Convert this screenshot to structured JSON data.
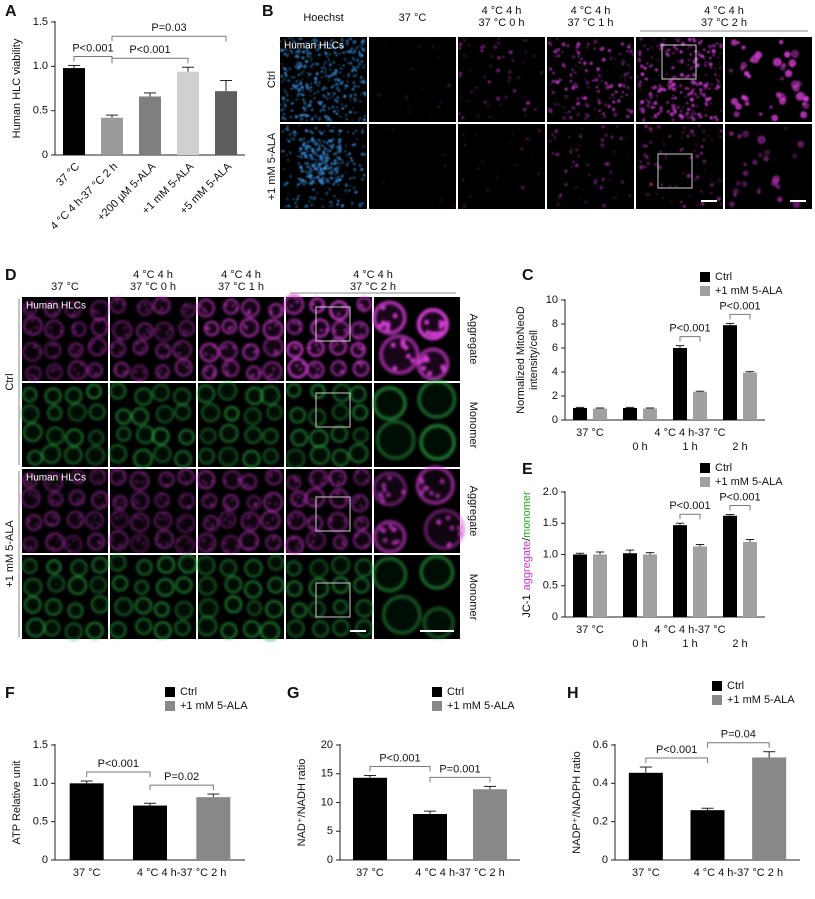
{
  "chart_data": [
    {
      "panel": "A",
      "type": "bar",
      "ylabel": "Human HLC viability",
      "categories": [
        "37 °C",
        "4 °C 4 h-37 °C 2 h",
        "+200 µM 5-ALA",
        "+1 mM 5-ALA",
        "+5 mM 5-ALA"
      ],
      "values": [
        0.98,
        0.42,
        0.66,
        0.94,
        0.72
      ],
      "errors": [
        0.03,
        0.03,
        0.04,
        0.05,
        0.12
      ],
      "colors": [
        "#000000",
        "#9a9a9a",
        "#7f7f7f",
        "#d0d0d0",
        "#5e5e5e"
      ],
      "ylim": [
        0,
        1.5
      ],
      "yticks": [
        0,
        0.5,
        {
          "value": 1,
          "label": "1.0"
        },
        1.5
      ],
      "annotations": [
        {
          "text": "P<0.001",
          "between": [
            0,
            1
          ]
        },
        {
          "text": "P<0.001",
          "between": [
            1,
            3
          ]
        },
        {
          "text": "P=0.03",
          "between": [
            1,
            4
          ]
        }
      ]
    },
    {
      "panel": "C",
      "type": "bar",
      "ylabel": [
        "Normalized MitoNeoD",
        "intensity/cell"
      ],
      "categories": [
        "37 °C",
        "0 h",
        "1 h",
        "2 h"
      ],
      "x_group_label": "4 °C 4 h-37 °C",
      "series": [
        {
          "name": "Ctrl",
          "color": "#000000",
          "values": [
            1.0,
            1.0,
            6.0,
            7.9
          ],
          "errors": [
            0.05,
            0.05,
            0.2,
            0.15
          ]
        },
        {
          "name": "+1 mM 5-ALA",
          "color": "#a0a0a0",
          "values": [
            0.95,
            0.95,
            2.35,
            3.95
          ],
          "errors": [
            0.05,
            0.05,
            0.05,
            0.08
          ]
        }
      ],
      "ylim": [
        0,
        10
      ],
      "yticks": [
        0,
        2,
        4,
        6,
        8,
        10
      ],
      "annotations": [
        {
          "text": "P<0.001",
          "between": [
            [
              0,
              2
            ],
            [
              1,
              2
            ]
          ]
        },
        {
          "text": "P<0.001",
          "between": [
            [
              0,
              3
            ],
            [
              1,
              3
            ]
          ]
        }
      ]
    },
    {
      "panel": "E",
      "type": "bar",
      "ylabel": [
        {
          "text": "JC-1",
          "color": "#000000"
        },
        {
          "text": "aggregate",
          "color": "#cc33cc"
        },
        {
          "text": "/",
          "color": "#000000"
        },
        {
          "text": "monomer",
          "color": "#22aa22"
        }
      ],
      "categories": [
        "37 °C",
        "0 h",
        "1 h",
        "2 h"
      ],
      "x_group_label": "4 °C 4 h-37 °C",
      "series": [
        {
          "name": "Ctrl",
          "color": "#000000",
          "values": [
            1.0,
            1.02,
            1.47,
            1.62
          ],
          "errors": [
            0.02,
            0.05,
            0.03,
            0.02
          ]
        },
        {
          "name": "+1 mM 5-ALA",
          "color": "#a0a0a0",
          "values": [
            1.0,
            1.0,
            1.13,
            1.2
          ],
          "errors": [
            0.04,
            0.03,
            0.03,
            0.04
          ]
        }
      ],
      "ylim": [
        0,
        2
      ],
      "yticks": [
        0,
        0.5,
        {
          "value": 1,
          "label": "1.0"
        },
        1.5,
        {
          "value": 2,
          "label": "2.0"
        }
      ],
      "annotations": [
        {
          "text": "P<0.001",
          "between": [
            [
              0,
              2
            ],
            [
              1,
              2
            ]
          ]
        },
        {
          "text": "P<0.001",
          "between": [
            [
              0,
              3
            ],
            [
              1,
              3
            ]
          ]
        }
      ]
    },
    {
      "panel": "F",
      "type": "bar",
      "ylabel": "ATP Relative unit",
      "categories": [
        "37 °C",
        "4 °C 4 h-37 °C 2 h"
      ],
      "series": [
        {
          "name": "Ctrl",
          "color": "#000000",
          "values": [
            1.0,
            0.71
          ],
          "errors": [
            0.03,
            0.03
          ]
        },
        {
          "name": "+1 mM 5-ALA",
          "color": "#888888",
          "values": [
            null,
            0.82
          ],
          "errors": [
            null,
            0.04
          ]
        }
      ],
      "ylim": [
        0,
        1.5
      ],
      "yticks": [
        0,
        0.5,
        {
          "value": 1,
          "label": "1.0"
        },
        1.5
      ],
      "annotations": [
        {
          "text": "P<0.001",
          "between": [
            [
              0,
              0
            ],
            [
              0,
              1
            ]
          ]
        },
        {
          "text": "P=0.02",
          "between": [
            [
              0,
              1
            ],
            [
              1,
              1
            ]
          ]
        }
      ]
    },
    {
      "panel": "G",
      "type": "bar",
      "ylabel": "NAD⁺/NADH ratio",
      "categories": [
        "37 °C",
        "4 °C 4 h-37 °C 2 h"
      ],
      "series": [
        {
          "name": "Ctrl",
          "color": "#000000",
          "values": [
            14.3,
            8.0
          ],
          "errors": [
            0.4,
            0.5
          ]
        },
        {
          "name": "+1 mM 5-ALA",
          "color": "#888888",
          "values": [
            null,
            12.3
          ],
          "errors": [
            null,
            0.5
          ]
        }
      ],
      "ylim": [
        0,
        20
      ],
      "yticks": [
        0,
        5,
        10,
        15,
        20
      ],
      "annotations": [
        {
          "text": "P<0.001",
          "between": [
            [
              0,
              0
            ],
            [
              0,
              1
            ]
          ]
        },
        {
          "text": "P=0.001",
          "between": [
            [
              0,
              1
            ],
            [
              1,
              1
            ]
          ]
        }
      ]
    },
    {
      "panel": "H",
      "type": "bar",
      "ylabel": "NADP⁺/NADPH ratio",
      "categories": [
        "37 °C",
        "4 °C 4 h-37 °C 2 h"
      ],
      "series": [
        {
          "name": "Ctrl",
          "color": "#000000",
          "values": [
            0.455,
            0.26
          ],
          "errors": [
            0.03,
            0.01
          ]
        },
        {
          "name": "+1 mM 5-ALA",
          "color": "#888888",
          "values": [
            null,
            0.535
          ],
          "errors": [
            null,
            0.03
          ]
        }
      ],
      "ylim": [
        0,
        0.6
      ],
      "yticks": [
        0,
        0.2,
        0.4,
        0.6
      ],
      "annotations": [
        {
          "text": "P<0.001",
          "between": [
            [
              0,
              0
            ],
            [
              0,
              1
            ]
          ]
        },
        {
          "text": "P=0.04",
          "between": [
            [
              0,
              1
            ],
            [
              1,
              1
            ]
          ]
        }
      ]
    }
  ],
  "panels": [
    {
      "panel": "B",
      "columns": [
        [
          "Hoechst"
        ],
        [
          "37 °C"
        ],
        [
          "4 °C 4 h",
          "37 °C 0 h"
        ],
        [
          "4 °C 4 h",
          "37 °C 1 h"
        ],
        [
          "4 °C 4 h",
          "37 °C 2 h"
        ]
      ],
      "rows": [
        "Ctrl",
        "+1 mM 5-ALA"
      ],
      "inset": "Human HLCs"
    },
    {
      "panel": "D",
      "columns": [
        [
          "37 °C"
        ],
        [
          "4 °C 4 h",
          "37 °C 0 h"
        ],
        [
          "4 °C 4 h",
          "37 °C 1 h"
        ],
        [
          "4 °C 4 h",
          "37 °C 2 h"
        ]
      ],
      "rows": [
        "Ctrl",
        "+1 mM 5-ALA"
      ],
      "channels": [
        "Aggregate",
        "Monomer"
      ],
      "inset": "Human HLCs"
    }
  ]
}
